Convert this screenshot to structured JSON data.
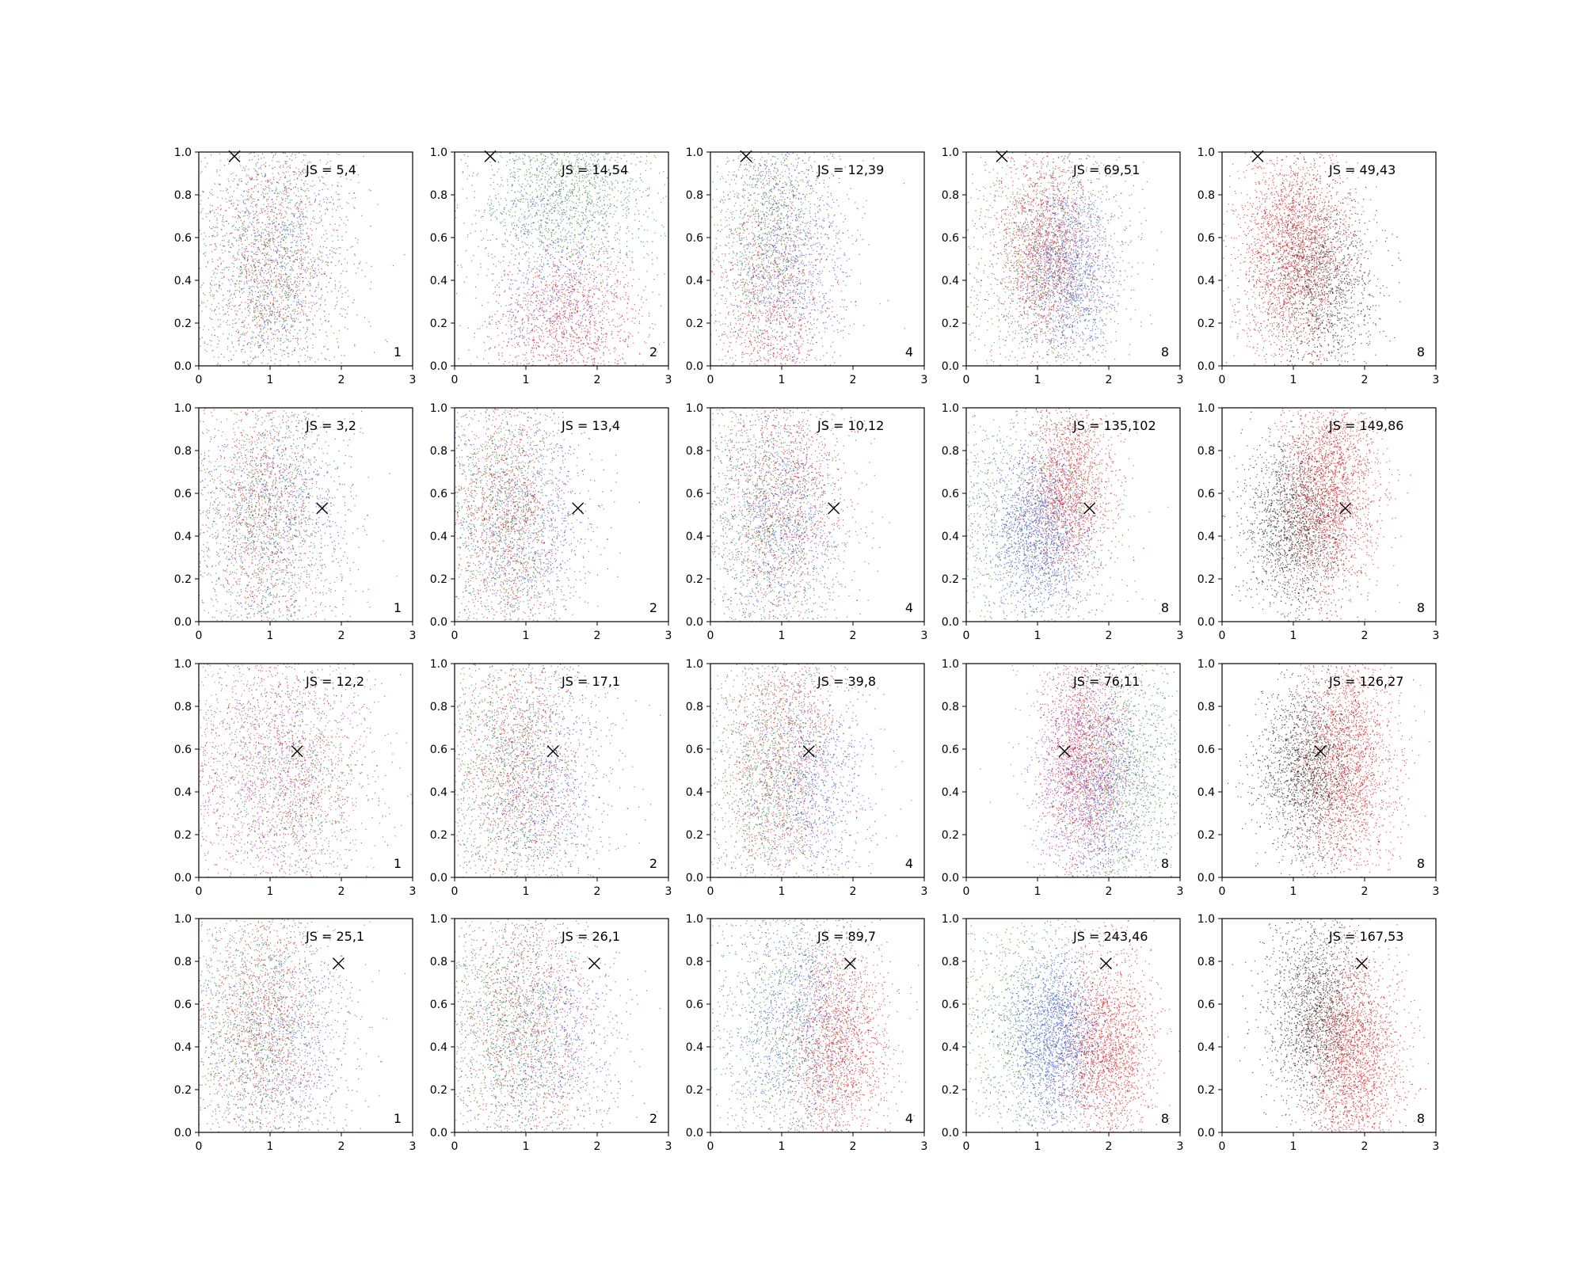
{
  "chart_data": {
    "type": "scatter",
    "rows": 4,
    "cols": 5,
    "xlim": [
      0,
      3
    ],
    "ylim": [
      0,
      1
    ],
    "x_ticks": [
      "0",
      "1",
      "2",
      "3"
    ],
    "y_ticks": [
      "0.0",
      "0.2",
      "0.4",
      "0.6",
      "0.8",
      "1.0"
    ],
    "grid": false,
    "colors": {
      "red": "#e41a1c",
      "green": "#2e8b2e",
      "blue": "#3b4fe0",
      "black": "#222222",
      "purple": "#b040d0"
    },
    "column_panel_numbers": [
      "1",
      "2",
      "4",
      "8",
      "8"
    ],
    "marker_positions": [
      {
        "x": 0.5,
        "y": 0.98
      },
      {
        "x": 1.73,
        "y": 0.53
      },
      {
        "x": 1.38,
        "y": 0.59
      },
      {
        "x": 1.96,
        "y": 0.79
      }
    ],
    "panels": [
      {
        "row": 0,
        "col": 0,
        "js": "JS = 5,4",
        "num": "1",
        "marker": {
          "x": 0.5,
          "y": 0.98
        },
        "clusters": [
          {
            "color": "red",
            "cx": 1.0,
            "sx": 0.45,
            "cy": 0.5,
            "sy": 0.3,
            "n": 900
          },
          {
            "color": "green",
            "cx": 1.0,
            "sx": 0.5,
            "cy": 0.5,
            "sy": 0.3,
            "n": 900
          },
          {
            "color": "blue",
            "cx": 1.1,
            "sx": 0.55,
            "cy": 0.5,
            "sy": 0.3,
            "n": 900
          }
        ]
      },
      {
        "row": 0,
        "col": 1,
        "js": "JS = 14,54",
        "num": "2",
        "marker": {
          "x": 0.5,
          "y": 0.98
        },
        "clusters": [
          {
            "color": "red",
            "cx": 1.6,
            "sx": 0.5,
            "cy": 0.2,
            "sy": 0.2,
            "n": 1100
          },
          {
            "color": "green",
            "cx": 1.6,
            "sx": 0.6,
            "cy": 0.85,
            "sy": 0.2,
            "n": 1100
          },
          {
            "color": "blue",
            "cx": 1.4,
            "sx": 0.55,
            "cy": 0.5,
            "sy": 0.3,
            "n": 900
          }
        ]
      },
      {
        "row": 0,
        "col": 2,
        "js": "JS = 12,39",
        "num": "4",
        "marker": {
          "x": 0.5,
          "y": 0.98
        },
        "clusters": [
          {
            "color": "red",
            "cx": 0.9,
            "sx": 0.4,
            "cy": 0.3,
            "sy": 0.35,
            "n": 900
          },
          {
            "color": "green",
            "cx": 0.8,
            "sx": 0.4,
            "cy": 0.6,
            "sy": 0.3,
            "n": 900
          },
          {
            "color": "blue",
            "cx": 1.1,
            "sx": 0.45,
            "cy": 0.5,
            "sy": 0.28,
            "n": 1000
          }
        ]
      },
      {
        "row": 0,
        "col": 3,
        "js": "JS = 69,51",
        "num": "8",
        "marker": {
          "x": 0.5,
          "y": 0.98
        },
        "clusters": [
          {
            "color": "green",
            "cx": 1.1,
            "sx": 0.6,
            "cy": 0.5,
            "sy": 0.3,
            "n": 1000
          },
          {
            "color": "blue",
            "cx": 1.45,
            "sx": 0.35,
            "cy": 0.45,
            "sy": 0.22,
            "n": 1400
          },
          {
            "color": "red",
            "cx": 1.1,
            "sx": 0.35,
            "cy": 0.55,
            "sy": 0.22,
            "n": 1500
          }
        ]
      },
      {
        "row": 0,
        "col": 4,
        "js": "JS = 49,43",
        "num": "8",
        "marker": {
          "x": 0.5,
          "y": 0.98
        },
        "clusters": [
          {
            "color": "black",
            "cx": 1.35,
            "sx": 0.4,
            "cy": 0.4,
            "sy": 0.22,
            "n": 1400
          },
          {
            "color": "red",
            "cx": 1.0,
            "sx": 0.4,
            "cy": 0.55,
            "sy": 0.25,
            "n": 2200
          }
        ]
      },
      {
        "row": 1,
        "col": 0,
        "js": "JS = 3,2",
        "num": "1",
        "marker": {
          "x": 1.73,
          "y": 0.53
        },
        "clusters": [
          {
            "color": "red",
            "cx": 0.9,
            "sx": 0.45,
            "cy": 0.5,
            "sy": 0.3,
            "n": 900
          },
          {
            "color": "green",
            "cx": 0.9,
            "sx": 0.45,
            "cy": 0.5,
            "sy": 0.3,
            "n": 900
          },
          {
            "color": "blue",
            "cx": 1.1,
            "sx": 0.55,
            "cy": 0.5,
            "sy": 0.3,
            "n": 900
          }
        ]
      },
      {
        "row": 1,
        "col": 1,
        "js": "JS = 13,4",
        "num": "2",
        "marker": {
          "x": 1.73,
          "y": 0.53
        },
        "clusters": [
          {
            "color": "red",
            "cx": 0.75,
            "sx": 0.4,
            "cy": 0.5,
            "sy": 0.3,
            "n": 1000
          },
          {
            "color": "green",
            "cx": 0.7,
            "sx": 0.4,
            "cy": 0.5,
            "sy": 0.3,
            "n": 900
          },
          {
            "color": "blue",
            "cx": 1.0,
            "sx": 0.5,
            "cy": 0.45,
            "sy": 0.28,
            "n": 900
          }
        ]
      },
      {
        "row": 1,
        "col": 2,
        "js": "JS = 10,12",
        "num": "4",
        "marker": {
          "x": 1.73,
          "y": 0.53
        },
        "clusters": [
          {
            "color": "red",
            "cx": 1.0,
            "sx": 0.45,
            "cy": 0.55,
            "sy": 0.3,
            "n": 1000
          },
          {
            "color": "green",
            "cx": 0.8,
            "sx": 0.45,
            "cy": 0.5,
            "sy": 0.3,
            "n": 900
          },
          {
            "color": "blue",
            "cx": 1.0,
            "sx": 0.45,
            "cy": 0.5,
            "sy": 0.28,
            "n": 1000
          }
        ]
      },
      {
        "row": 1,
        "col": 3,
        "js": "JS = 135,102",
        "num": "8",
        "marker": {
          "x": 1.73,
          "y": 0.53
        },
        "clusters": [
          {
            "color": "green",
            "cx": 0.9,
            "sx": 0.6,
            "cy": 0.5,
            "sy": 0.3,
            "n": 900
          },
          {
            "color": "blue",
            "cx": 1.0,
            "sx": 0.35,
            "cy": 0.42,
            "sy": 0.2,
            "n": 1600
          },
          {
            "color": "red",
            "cx": 1.45,
            "sx": 0.3,
            "cy": 0.62,
            "sy": 0.22,
            "n": 1500
          }
        ]
      },
      {
        "row": 1,
        "col": 4,
        "js": "JS = 149,86",
        "num": "8",
        "marker": {
          "x": 1.73,
          "y": 0.53
        },
        "clusters": [
          {
            "color": "black",
            "cx": 1.0,
            "sx": 0.35,
            "cy": 0.45,
            "sy": 0.2,
            "n": 1800
          },
          {
            "color": "red",
            "cx": 1.5,
            "sx": 0.35,
            "cy": 0.62,
            "sy": 0.25,
            "n": 2000
          }
        ]
      },
      {
        "row": 2,
        "col": 0,
        "js": "JS = 12,2",
        "num": "1",
        "marker": {
          "x": 1.38,
          "y": 0.59
        },
        "clusters": [
          {
            "color": "red",
            "cx": 1.2,
            "sx": 0.6,
            "cy": 0.5,
            "sy": 0.3,
            "n": 900
          },
          {
            "color": "green",
            "cx": 1.3,
            "sx": 0.6,
            "cy": 0.5,
            "sy": 0.3,
            "n": 900
          },
          {
            "color": "purple",
            "cx": 1.0,
            "sx": 0.6,
            "cy": 0.5,
            "sy": 0.3,
            "n": 900
          }
        ]
      },
      {
        "row": 2,
        "col": 1,
        "js": "JS = 17,1",
        "num": "2",
        "marker": {
          "x": 1.38,
          "y": 0.59
        },
        "clusters": [
          {
            "color": "red",
            "cx": 0.9,
            "sx": 0.45,
            "cy": 0.5,
            "sy": 0.3,
            "n": 1000
          },
          {
            "color": "green",
            "cx": 0.8,
            "sx": 0.45,
            "cy": 0.5,
            "sy": 0.3,
            "n": 900
          },
          {
            "color": "blue",
            "cx": 1.2,
            "sx": 0.5,
            "cy": 0.45,
            "sy": 0.28,
            "n": 900
          }
        ]
      },
      {
        "row": 2,
        "col": 2,
        "js": "JS = 39,8",
        "num": "4",
        "marker": {
          "x": 1.38,
          "y": 0.59
        },
        "clusters": [
          {
            "color": "red",
            "cx": 1.0,
            "sx": 0.4,
            "cy": 0.55,
            "sy": 0.3,
            "n": 1100
          },
          {
            "color": "green",
            "cx": 0.8,
            "sx": 0.4,
            "cy": 0.5,
            "sy": 0.3,
            "n": 900
          },
          {
            "color": "blue",
            "cx": 1.4,
            "sx": 0.45,
            "cy": 0.45,
            "sy": 0.28,
            "n": 1000
          }
        ]
      },
      {
        "row": 2,
        "col": 3,
        "js": "JS = 76,11",
        "num": "8",
        "marker": {
          "x": 1.38,
          "y": 0.59
        },
        "clusters": [
          {
            "color": "green",
            "cx": 2.3,
            "sx": 0.45,
            "cy": 0.5,
            "sy": 0.3,
            "n": 1100
          },
          {
            "color": "blue",
            "cx": 1.9,
            "sx": 0.4,
            "cy": 0.45,
            "sy": 0.28,
            "n": 1200
          },
          {
            "color": "purple",
            "cx": 1.5,
            "sx": 0.35,
            "cy": 0.5,
            "sy": 0.28,
            "n": 600
          },
          {
            "color": "red",
            "cx": 1.65,
            "sx": 0.3,
            "cy": 0.55,
            "sy": 0.25,
            "n": 1500
          }
        ]
      },
      {
        "row": 2,
        "col": 4,
        "js": "JS = 126,27",
        "num": "8",
        "marker": {
          "x": 1.38,
          "y": 0.59
        },
        "clusters": [
          {
            "color": "black",
            "cx": 1.2,
            "sx": 0.35,
            "cy": 0.5,
            "sy": 0.2,
            "n": 1800
          },
          {
            "color": "red",
            "cx": 1.75,
            "sx": 0.35,
            "cy": 0.55,
            "sy": 0.25,
            "n": 2000
          }
        ]
      },
      {
        "row": 3,
        "col": 0,
        "js": "JS = 25,1",
        "num": "1",
        "marker": {
          "x": 1.96,
          "y": 0.79
        },
        "clusters": [
          {
            "color": "red",
            "cx": 0.9,
            "sx": 0.45,
            "cy": 0.5,
            "sy": 0.3,
            "n": 1000
          },
          {
            "color": "green",
            "cx": 0.8,
            "sx": 0.45,
            "cy": 0.5,
            "sy": 0.3,
            "n": 1000
          },
          {
            "color": "blue",
            "cx": 1.2,
            "sx": 0.55,
            "cy": 0.45,
            "sy": 0.28,
            "n": 900
          }
        ]
      },
      {
        "row": 3,
        "col": 1,
        "js": "JS = 26,1",
        "num": "2",
        "marker": {
          "x": 1.96,
          "y": 0.79
        },
        "clusters": [
          {
            "color": "red",
            "cx": 1.0,
            "sx": 0.5,
            "cy": 0.5,
            "sy": 0.3,
            "n": 1000
          },
          {
            "color": "green",
            "cx": 0.8,
            "sx": 0.45,
            "cy": 0.5,
            "sy": 0.3,
            "n": 1000
          },
          {
            "color": "blue",
            "cx": 1.3,
            "sx": 0.55,
            "cy": 0.45,
            "sy": 0.28,
            "n": 900
          }
        ]
      },
      {
        "row": 3,
        "col": 2,
        "js": "JS = 89,7",
        "num": "4",
        "marker": {
          "x": 1.96,
          "y": 0.79
        },
        "clusters": [
          {
            "color": "green",
            "cx": 1.1,
            "sx": 0.5,
            "cy": 0.55,
            "sy": 0.3,
            "n": 1000
          },
          {
            "color": "blue",
            "cx": 1.2,
            "sx": 0.5,
            "cy": 0.5,
            "sy": 0.28,
            "n": 1000
          },
          {
            "color": "red",
            "cx": 1.8,
            "sx": 0.35,
            "cy": 0.4,
            "sy": 0.25,
            "n": 1500
          }
        ]
      },
      {
        "row": 3,
        "col": 3,
        "js": "JS = 243,46",
        "num": "8",
        "marker": {
          "x": 1.96,
          "y": 0.79
        },
        "clusters": [
          {
            "color": "green",
            "cx": 0.9,
            "sx": 0.55,
            "cy": 0.5,
            "sy": 0.3,
            "n": 1000
          },
          {
            "color": "blue",
            "cx": 1.25,
            "sx": 0.3,
            "cy": 0.45,
            "sy": 0.2,
            "n": 1800
          },
          {
            "color": "red",
            "cx": 2.0,
            "sx": 0.3,
            "cy": 0.4,
            "sy": 0.22,
            "n": 1800
          }
        ]
      },
      {
        "row": 3,
        "col": 4,
        "js": "JS = 167,53",
        "num": "8",
        "marker": {
          "x": 1.96,
          "y": 0.79
        },
        "clusters": [
          {
            "color": "black",
            "cx": 1.3,
            "sx": 0.35,
            "cy": 0.55,
            "sy": 0.22,
            "n": 1800
          },
          {
            "color": "red",
            "cx": 1.85,
            "sx": 0.35,
            "cy": 0.35,
            "sy": 0.25,
            "n": 2000
          }
        ]
      }
    ]
  }
}
